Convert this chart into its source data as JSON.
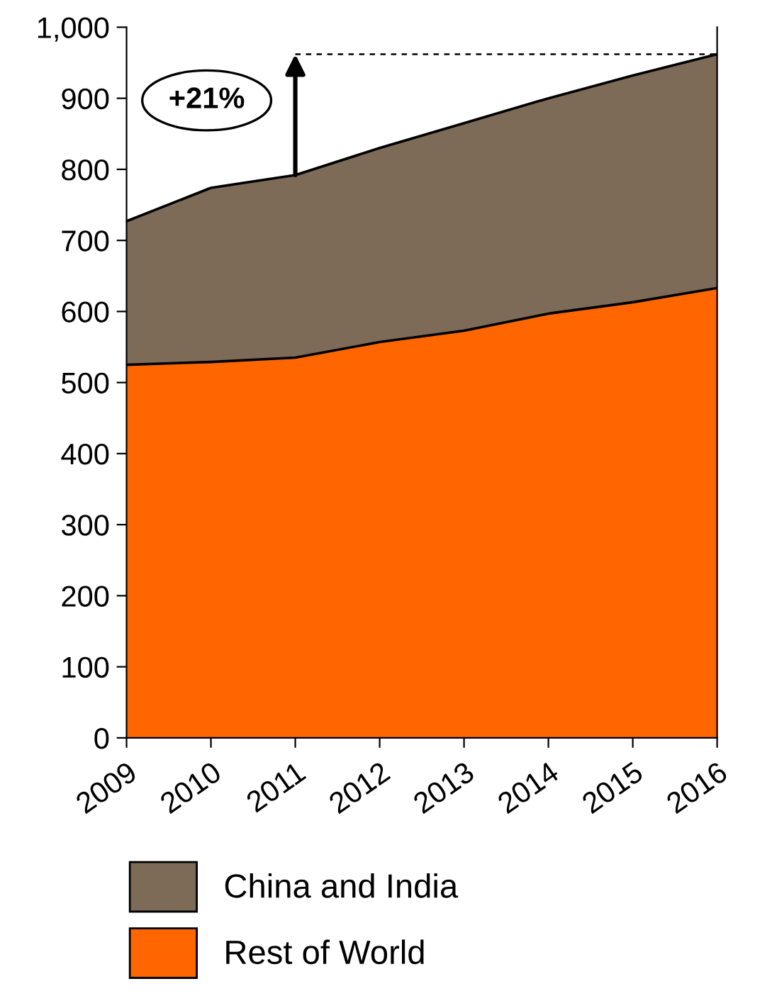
{
  "chart_data": {
    "type": "area",
    "stacked": true,
    "categories": [
      "2009",
      "2010",
      "2011",
      "2012",
      "2013",
      "2014",
      "2015",
      "2016"
    ],
    "series": [
      {
        "name": "Rest of World",
        "color": "#ff6600",
        "values": [
          525,
          529,
          535,
          557,
          573,
          597,
          613,
          633
        ]
      },
      {
        "name": "China and India",
        "color": "#7d6b58",
        "values": [
          202,
          245,
          257,
          273,
          292,
          303,
          319,
          329
        ]
      }
    ],
    "ylim": [
      0,
      1000
    ],
    "yticks": [
      0,
      100,
      200,
      300,
      400,
      500,
      600,
      700,
      800,
      900,
      {
        "value": 1000,
        "label": "1,000"
      }
    ],
    "grid": false,
    "legend": "bottom",
    "ref_lines": [
      {
        "axis": "y",
        "value": 962,
        "line_style": "dashed",
        "color": "#000000"
      }
    ],
    "annotations": [
      {
        "text": "+21%",
        "x": "2011",
        "y": 962
      }
    ]
  }
}
